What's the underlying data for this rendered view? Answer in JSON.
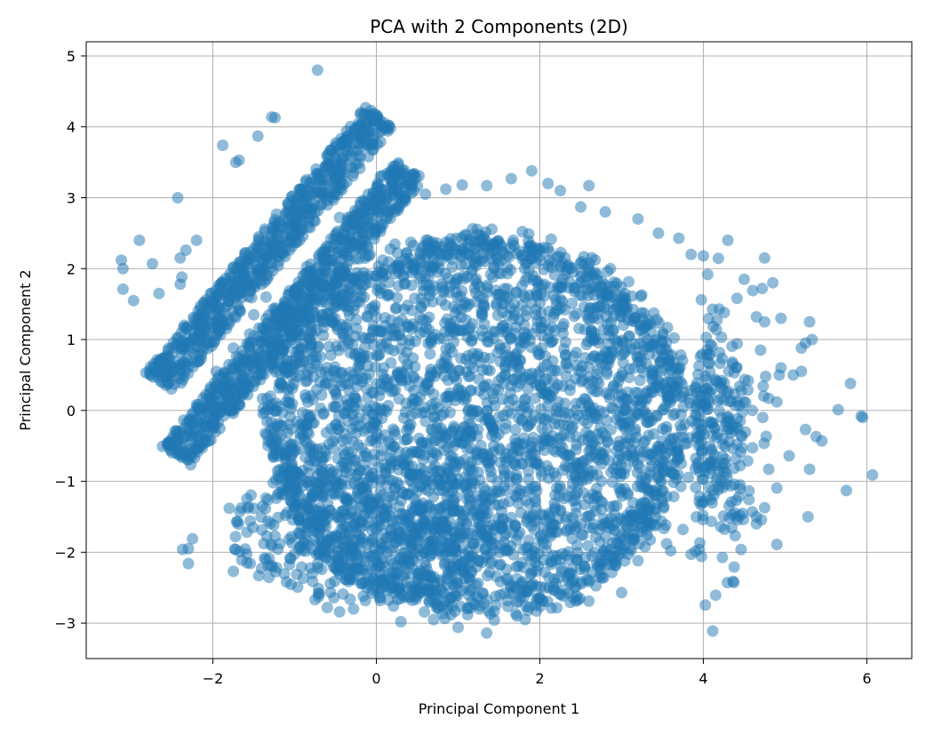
{
  "chart_data": {
    "type": "scatter",
    "title": "PCA with 2 Components (2D)",
    "xlabel": "Principal Component 1",
    "ylabel": "Principal Component 2",
    "xlim": [
      -3.55,
      6.55
    ],
    "ylim": [
      -3.5,
      5.2
    ],
    "xticks": [
      -2,
      0,
      2,
      4,
      6
    ],
    "yticks": [
      -3,
      -2,
      -1,
      0,
      1,
      2,
      3,
      4,
      5
    ],
    "xtick_labels": [
      "−2",
      "0",
      "2",
      "4",
      "6"
    ],
    "ytick_labels": [
      "−3",
      "−2",
      "−1",
      "0",
      "1",
      "2",
      "3",
      "4",
      "5"
    ],
    "grid": true,
    "color": "#1f77b4",
    "alpha": 0.5,
    "series": [
      {
        "values_note": "",
        "points": [
          [
            -0.72,
            4.8
          ],
          [
            -3.12,
            2.12
          ],
          [
            -3.1,
            2.0
          ],
          [
            -3.1,
            1.71
          ],
          [
            -2.97,
            1.55
          ],
          [
            -2.9,
            2.4
          ],
          [
            -2.74,
            2.07
          ],
          [
            -2.66,
            1.65
          ],
          [
            -2.43,
            3.0
          ],
          [
            -2.33,
            2.26
          ],
          [
            -2.2,
            2.4
          ],
          [
            -2.4,
            2.15
          ],
          [
            -2.38,
            1.88
          ],
          [
            -2.4,
            1.78
          ],
          [
            -1.88,
            3.74
          ],
          [
            -1.72,
            3.5
          ],
          [
            -1.68,
            3.53
          ],
          [
            -1.45,
            3.87
          ],
          [
            -1.28,
            4.14
          ],
          [
            -1.24,
            4.13
          ],
          [
            -2.37,
            -1.96
          ],
          [
            -2.3,
            -1.95
          ],
          [
            -2.3,
            -2.16
          ],
          [
            -2.25,
            -1.81
          ],
          [
            -1.96,
            0.55
          ],
          [
            -1.8,
            -1.38
          ],
          [
            -1.75,
            -2.27
          ],
          [
            -1.44,
            -2.33
          ],
          [
            -1.1,
            -2.42
          ],
          [
            -0.75,
            -2.67
          ],
          [
            -0.6,
            -2.78
          ],
          [
            -0.45,
            -2.84
          ],
          [
            -0.28,
            -2.8
          ],
          [
            0.3,
            -2.98
          ],
          [
            0.7,
            -2.95
          ],
          [
            1.0,
            -3.06
          ],
          [
            1.35,
            -3.14
          ],
          [
            1.82,
            -2.95
          ],
          [
            2.45,
            -2.62
          ],
          [
            2.6,
            -2.69
          ],
          [
            3.0,
            -2.57
          ],
          [
            3.2,
            -2.12
          ],
          [
            3.55,
            -1.88
          ],
          [
            3.85,
            -2.03
          ],
          [
            3.6,
            -1.98
          ],
          [
            3.95,
            -1.96
          ],
          [
            3.75,
            -1.68
          ],
          [
            4.18,
            -1.12
          ],
          [
            4.45,
            -1.05
          ],
          [
            4.45,
            -0.78
          ],
          [
            4.6,
            -1.43
          ],
          [
            4.65,
            -1.5
          ],
          [
            4.65,
            -1.6
          ],
          [
            4.9,
            -1.89
          ],
          [
            4.45,
            -1.48
          ],
          [
            5.05,
            -0.64
          ],
          [
            5.3,
            -0.83
          ],
          [
            5.28,
            -1.5
          ],
          [
            5.25,
            -0.27
          ],
          [
            5.38,
            -0.37
          ],
          [
            5.45,
            -0.43
          ],
          [
            5.65,
            0.01
          ],
          [
            5.75,
            -1.13
          ],
          [
            5.93,
            -0.08
          ],
          [
            5.95,
            -0.1
          ],
          [
            6.07,
            -0.91
          ],
          [
            5.8,
            0.38
          ],
          [
            5.1,
            0.5
          ],
          [
            5.2,
            0.55
          ],
          [
            5.25,
            0.95
          ],
          [
            5.33,
            1.0
          ],
          [
            5.3,
            1.25
          ],
          [
            5.2,
            0.88
          ],
          [
            4.95,
            1.3
          ],
          [
            4.75,
            1.25
          ],
          [
            4.85,
            1.8
          ],
          [
            4.75,
            2.15
          ],
          [
            4.72,
            1.72
          ],
          [
            4.5,
            1.85
          ],
          [
            4.3,
            2.4
          ],
          [
            4.0,
            2.18
          ],
          [
            3.85,
            2.2
          ],
          [
            3.7,
            2.43
          ],
          [
            3.45,
            2.5
          ],
          [
            3.2,
            2.7
          ],
          [
            2.8,
            2.8
          ],
          [
            2.5,
            2.87
          ],
          [
            2.25,
            3.1
          ],
          [
            2.1,
            3.2
          ],
          [
            1.9,
            3.38
          ],
          [
            1.65,
            3.27
          ],
          [
            1.35,
            3.17
          ],
          [
            1.05,
            3.18
          ],
          [
            0.85,
            3.12
          ],
          [
            0.6,
            3.05
          ],
          [
            0.05,
            3.3
          ],
          [
            -0.1,
            3.05
          ],
          [
            -0.2,
            2.78
          ],
          [
            -0.45,
            2.72
          ],
          [
            -0.7,
            2.15
          ],
          [
            -0.85,
            2.03
          ],
          [
            -1.5,
            1.35
          ],
          [
            -1.35,
            1.6
          ],
          [
            -1.75,
            0.88
          ],
          [
            -1.55,
            1.08
          ],
          [
            2.6,
            3.17
          ],
          [
            4.65,
            1.32
          ],
          [
            4.7,
            0.85
          ],
          [
            4.55,
            0.42
          ],
          [
            4.6,
            0.0
          ],
          [
            4.8,
            0.17
          ],
          [
            4.9,
            0.12
          ],
          [
            4.95,
            0.6
          ]
        ],
        "regions": {
          "core_blob": {
            "cx": 1.25,
            "cy": -0.2,
            "rx": 2.55,
            "ry": 2.65
          },
          "core_left_lobe": {
            "cx": -0.1,
            "cy": -1.7,
            "rx": 1.7,
            "ry": 1.0
          },
          "upper_band": {
            "from": [
              -2.65,
              0.4
            ],
            "to": [
              0.05,
              4.15
            ],
            "width": 0.45
          },
          "lower_band": {
            "from": [
              -2.45,
              -0.65
            ],
            "to": [
              0.4,
              3.4
            ],
            "width": 0.45
          }
        }
      }
    ]
  }
}
